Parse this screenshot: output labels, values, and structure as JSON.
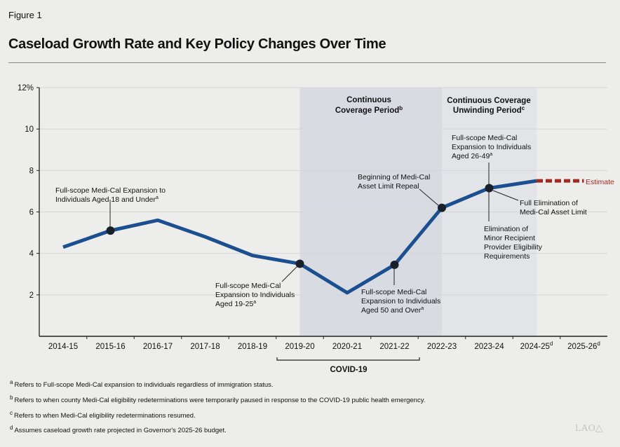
{
  "figure_label": "Figure 1",
  "logo": "LAO",
  "chart_data": {
    "type": "line",
    "title": "Caseload Growth Rate and Key Policy Changes Over Time",
    "categories": [
      "2014-15",
      "2015-16",
      "2016-17",
      "2017-18",
      "2018-19",
      "2019-20",
      "2020-21",
      "2021-22",
      "2022-23",
      "2023-24",
      "2024-25",
      "2025-26"
    ],
    "category_sups": [
      "",
      "",
      "",
      "",
      "",
      "",
      "",
      "",
      "",
      "",
      "d",
      "d"
    ],
    "values": [
      4.3,
      5.1,
      5.6,
      4.8,
      3.9,
      3.5,
      2.1,
      3.45,
      6.2,
      7.15,
      7.5,
      null
    ],
    "estimate": {
      "label": "Estimate",
      "from": "2024-25",
      "to": "2025-26",
      "values": [
        7.5,
        7.5
      ],
      "color": "#a32a20"
    },
    "ylim": [
      0,
      12
    ],
    "yticks": [
      {
        "v": 2,
        "label": "2"
      },
      {
        "v": 4,
        "label": "4"
      },
      {
        "v": 6,
        "label": "6"
      },
      {
        "v": 8,
        "label": "8"
      },
      {
        "v": 10,
        "label": "10"
      },
      {
        "v": 12,
        "label": "12%"
      }
    ],
    "grid": true,
    "line_color": "#1b4f8f",
    "marker_color": "#18202c",
    "markers": [
      "2015-16",
      "2019-20",
      "2021-22",
      "2022-23",
      "2023-24"
    ],
    "periods": [
      {
        "lines": [
          "Continuous",
          "Coverage Period"
        ],
        "sup": "b",
        "from": "2019-20",
        "to": "2022-23",
        "color": "#d9dbe2"
      },
      {
        "lines": [
          "Continuous Coverage",
          "Unwinding Period"
        ],
        "sup": "c",
        "from": "2022-23",
        "to": "2024-25",
        "color": "#e3e4e8"
      }
    ],
    "covid": {
      "label": "COVID-19"
    },
    "annotations": [
      {
        "lines": [
          "Full-scope Medi-Cal Expansion to",
          "Individuals Aged 18 and Under"
        ],
        "sup": "a"
      },
      {
        "lines": [
          "Full-scope Medi-Cal",
          "Expansion to Individuals",
          "Aged 19-25"
        ],
        "sup": "a"
      },
      {
        "lines": [
          "Full-scope Medi-Cal",
          "Expansion to Individuals",
          "Aged 50 and Over"
        ],
        "sup": "a"
      },
      {
        "lines": [
          "Beginning of Medi-Cal",
          "Asset Limit Repeal"
        ],
        "sup": ""
      },
      {
        "lines": [
          "Full-scope Medi-Cal",
          "Expansion to Individuals",
          "Aged 26-49"
        ],
        "sup": "a"
      },
      {
        "lines": [
          "Full Elimination of",
          "Medi-Cal Asset Limit"
        ],
        "sup": ""
      },
      {
        "lines": [
          "Elimination of",
          "Minor Recipient",
          "Provider Eligibility",
          "Requirements"
        ],
        "sup": ""
      }
    ]
  },
  "footnotes": [
    {
      "mark": "a",
      "text": "Refers to Full-scope Medi-Cal expansion to individuals regardless of immigration status."
    },
    {
      "mark": "b",
      "text": "Refers to when county Medi-Cal eligibility redeterminations were temporarily paused in response to the COVID-19 public health emergency."
    },
    {
      "mark": "c",
      "text": "Refers to when Medi-Cal eligibility redeterminations resumed."
    },
    {
      "mark": "d",
      "text": "Assumes caseload growth rate projected in Governor's 2025-26 budget."
    }
  ]
}
